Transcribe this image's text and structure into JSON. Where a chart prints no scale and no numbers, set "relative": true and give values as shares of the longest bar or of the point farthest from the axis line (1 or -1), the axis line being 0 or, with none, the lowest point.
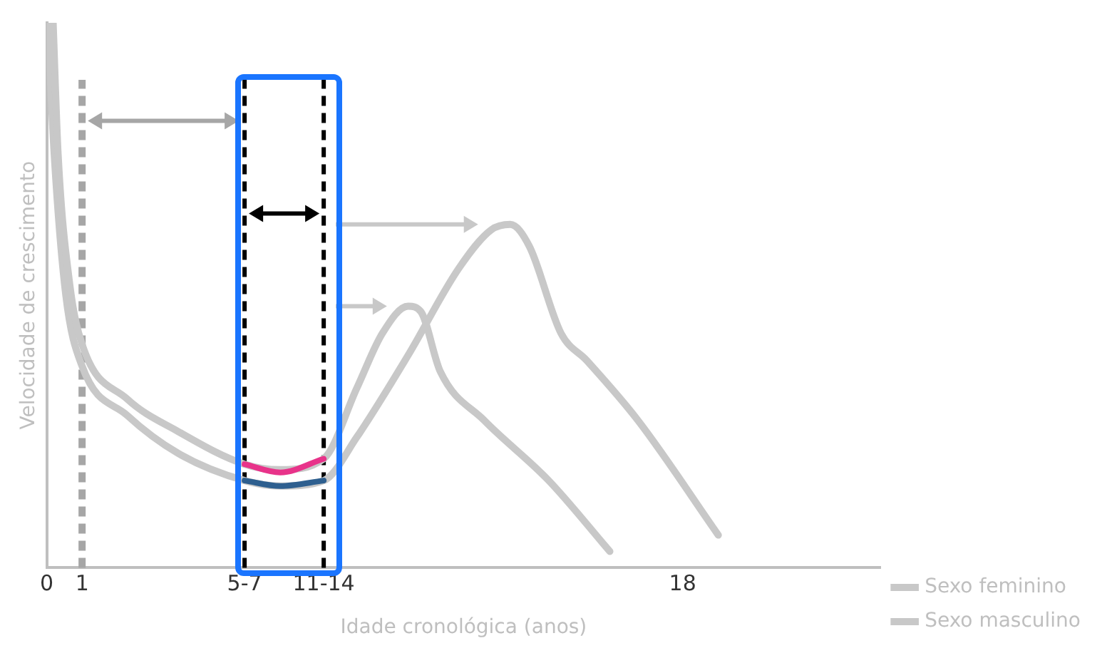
{
  "chart_data": {
    "type": "line",
    "relative": true,
    "xlabel": "Idade cronológica (anos)",
    "ylabel": "Velocidade de crescimento",
    "xlim": [
      0,
      23.6
    ],
    "xticks": [
      0,
      1,
      {
        "value": 5.6,
        "label": "5-7"
      },
      {
        "value": 7.84,
        "label": "11-14"
      },
      18
    ],
    "legend": "bottom right",
    "marker": "none",
    "series": [
      {
        "name": "Sexo feminino",
        "color": "#c8c8c8",
        "x": [
          0.18,
          0.32,
          0.65,
          1.0,
          2.27,
          3.72,
          5.6,
          6.61,
          7.84,
          8.78,
          9.5,
          10.23,
          10.59,
          11.14,
          12.39,
          14.21,
          15.94
        ],
        "values": [
          1.0,
          0.76,
          0.52,
          0.41,
          0.31,
          0.25,
          0.19,
          0.18,
          0.2,
          0.33,
          0.43,
          0.48,
          0.47,
          0.36,
          0.27,
          0.16,
          0.03
        ]
      },
      {
        "name": "Sexo masculino",
        "color": "#c8c8c8",
        "x": [
          0.03,
          0.21,
          0.54,
          1.0,
          2.27,
          3.72,
          5.6,
          6.61,
          7.84,
          8.78,
          10.23,
          11.67,
          12.58,
          13.12,
          13.66,
          14.56,
          15.29,
          16.74,
          19.01
        ],
        "values": [
          1.0,
          0.76,
          0.5,
          0.37,
          0.28,
          0.21,
          0.16,
          0.15,
          0.16,
          0.24,
          0.39,
          0.55,
          0.62,
          0.63,
          0.59,
          0.43,
          0.38,
          0.27,
          0.06
        ]
      },
      {
        "color": "#e8338a",
        "x": [
          5.6,
          6.61,
          7.84
        ],
        "values": [
          0.19,
          0.175,
          0.2
        ]
      },
      {
        "color": "#2e5f8f",
        "x": [
          5.6,
          6.61,
          7.84
        ],
        "values": [
          0.16,
          0.15,
          0.16
        ]
      }
    ],
    "ref_lines": [
      {
        "axis": "x",
        "value": 1,
        "color": "#a6a6a6",
        "line_style": "dashed"
      },
      {
        "axis": "x",
        "value": 5.6,
        "color": "#000000",
        "line_style": "dashed"
      },
      {
        "axis": "x",
        "value": 7.84,
        "color": "#000000",
        "line_style": "dashed"
      }
    ]
  }
}
